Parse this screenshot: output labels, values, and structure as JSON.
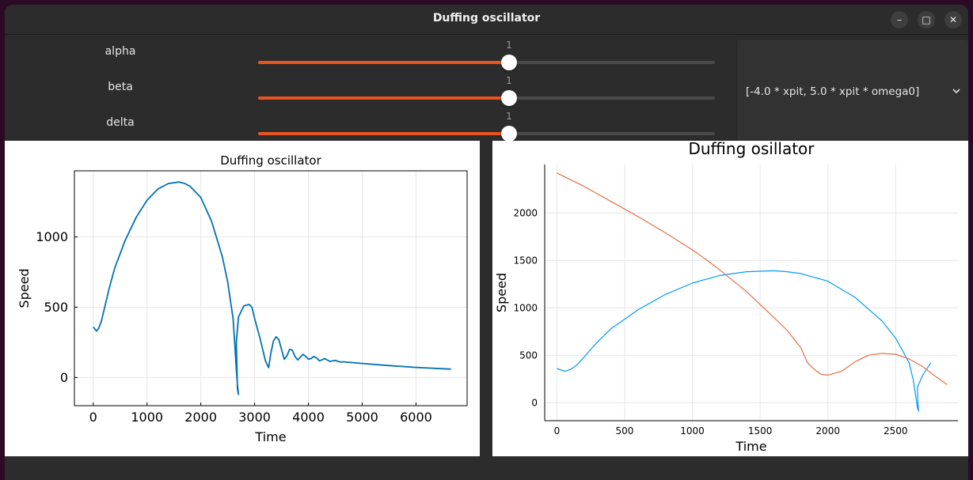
{
  "window": {
    "title": "Duffing oscillator",
    "buttons": {
      "minimize": "–",
      "maximize": "□",
      "close": "✕"
    }
  },
  "sliders": [
    {
      "label": "alpha",
      "value": "1",
      "fraction": 0.549
    },
    {
      "label": "beta",
      "value": "1",
      "fraction": 0.549
    },
    {
      "label": "delta",
      "value": "1",
      "fraction": 0.549
    }
  ],
  "dropdown": {
    "selected": "[-4.0 * xpit, 5.0 * xpit * omega0]",
    "icon": "chevron-down-icon"
  },
  "colors": {
    "accent": "#e95420",
    "series_blue": "#0072b2",
    "series_blue2": "#009af9",
    "series_red": "#e26f46"
  },
  "chart_data": [
    {
      "type": "line",
      "title": "Duffing oscillator",
      "xlabel": "Time",
      "ylabel": "Speed",
      "xlim": [
        -350,
        6950
      ],
      "ylim": [
        -200,
        1470
      ],
      "xticks": [
        "0",
        "1000",
        "2000",
        "3000",
        "4000",
        "5000",
        "6000"
      ],
      "yticks": [
        "0",
        "500",
        "1000"
      ],
      "grid": true,
      "series": [
        {
          "x": [
            0,
            60,
            100,
            150,
            200,
            300,
            400,
            600,
            800,
            1000,
            1200,
            1400,
            1600,
            1700,
            1800,
            2000,
            2200,
            2400,
            2500,
            2600,
            2630,
            2660,
            2680,
            2700,
            2680,
            2660,
            2700,
            2800,
            2900,
            2950,
            3000,
            3100,
            3200,
            3260,
            3300,
            3350,
            3400,
            3450,
            3500,
            3550,
            3600,
            3650,
            3700,
            3750,
            3800,
            3850,
            3900,
            3950,
            4000,
            4050,
            4100,
            4150,
            4200,
            4250,
            4300,
            4350,
            4400,
            4450,
            4500,
            4550,
            4600,
            4650,
            4700,
            5000,
            5500,
            6000,
            6650
          ],
          "y": [
            360,
            330,
            350,
            400,
            480,
            640,
            780,
            980,
            1140,
            1260,
            1340,
            1380,
            1390,
            1380,
            1360,
            1280,
            1110,
            860,
            680,
            420,
            240,
            60,
            -50,
            -120,
            -80,
            250,
            430,
            510,
            520,
            500,
            420,
            280,
            120,
            70,
            170,
            260,
            290,
            270,
            200,
            130,
            155,
            200,
            195,
            150,
            125,
            145,
            165,
            150,
            130,
            135,
            150,
            140,
            120,
            125,
            135,
            125,
            115,
            118,
            122,
            115,
            110,
            112,
            110,
            100,
            85,
            72,
            60
          ]
        }
      ]
    },
    {
      "type": "line",
      "title": "Duffing osillator",
      "xlabel": "Time",
      "ylabel": "Speed",
      "xlim": [
        -90,
        2960
      ],
      "ylim": [
        -190,
        2510
      ],
      "xticks": [
        "0",
        "500",
        "1000",
        "1500",
        "2000",
        "2500"
      ],
      "yticks": [
        "0",
        "500",
        "1000",
        "1500",
        "2000"
      ],
      "grid": true,
      "series": [
        {
          "color": "#009af9",
          "x": [
            0,
            60,
            100,
            150,
            200,
            300,
            400,
            600,
            800,
            1000,
            1200,
            1400,
            1600,
            1700,
            1800,
            2000,
            2200,
            2400,
            2500,
            2600,
            2630,
            2650,
            2660,
            2670,
            2665,
            2660,
            2700,
            2750,
            2760
          ],
          "y": [
            360,
            330,
            350,
            400,
            480,
            640,
            780,
            980,
            1140,
            1260,
            1340,
            1380,
            1390,
            1380,
            1360,
            1280,
            1110,
            860,
            680,
            420,
            240,
            60,
            -50,
            -90,
            -10,
            160,
            290,
            400,
            420
          ]
        },
        {
          "color": "#e26f46",
          "x": [
            0,
            200,
            400,
            600,
            800,
            1000,
            1100,
            1200,
            1400,
            1600,
            1700,
            1800,
            1850,
            1900,
            1950,
            2000,
            2100,
            2200,
            2300,
            2400,
            2500,
            2600,
            2700,
            2800,
            2880
          ],
          "y": [
            2420,
            2280,
            2120,
            1960,
            1790,
            1610,
            1510,
            1400,
            1170,
            900,
            760,
            580,
            420,
            350,
            300,
            290,
            330,
            430,
            500,
            520,
            510,
            460,
            380,
            270,
            190
          ]
        }
      ]
    }
  ]
}
